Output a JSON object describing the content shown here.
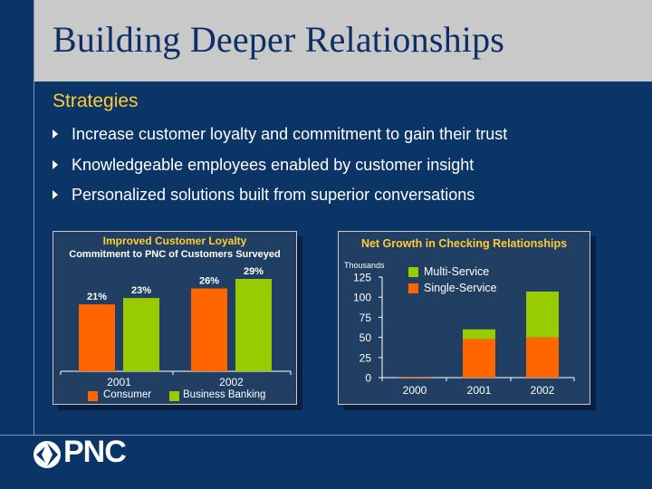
{
  "slide": {
    "title": "Building Deeper Relationships",
    "subtitle": "Strategies",
    "bullets": [
      "Increase customer loyalty and commitment to gain their trust",
      "Knowledgeable employees enabled by customer insight",
      "Personalized solutions built from superior conversations"
    ],
    "logo_text": "PNC"
  },
  "colors": {
    "orange": "#ff6600",
    "green": "#99cc00",
    "accent": "#ffcc33",
    "background": "#0a3566"
  },
  "chart_data": [
    {
      "type": "bar",
      "title": "Improved Customer Loyalty",
      "subtitle": "Commitment to PNC of Customers Surveyed",
      "categories": [
        "2001",
        "2002"
      ],
      "series": [
        {
          "name": "Consumer",
          "values": [
            21,
            26
          ],
          "labels": [
            "21%",
            "26%"
          ]
        },
        {
          "name": "Business Banking",
          "values": [
            23,
            29
          ],
          "labels": [
            "23%",
            "29%"
          ]
        }
      ],
      "legend": "bottom"
    },
    {
      "type": "bar",
      "stacked": true,
      "title": "Net Growth in Checking Relationships",
      "ylabel": "Thousands",
      "categories": [
        "2000",
        "2001",
        "2002"
      ],
      "series": [
        {
          "name": "Single-Service",
          "values": [
            1,
            48,
            50
          ]
        },
        {
          "name": "Multi-Service",
          "values": [
            0,
            12,
            57
          ]
        }
      ],
      "yticks": [
        "0",
        "25",
        "50",
        "75",
        "100",
        "125"
      ],
      "ylim": [
        0,
        125
      ],
      "legend": "top-left"
    }
  ]
}
